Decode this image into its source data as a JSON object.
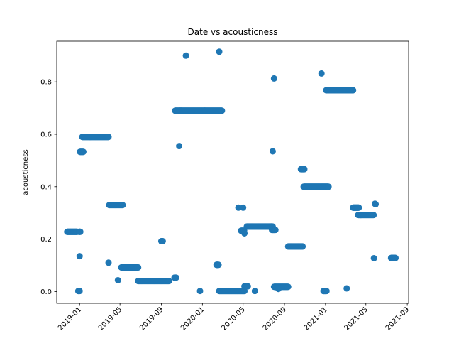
{
  "chart_data": {
    "type": "scatter",
    "title": "Date vs acousticness",
    "xlabel": "",
    "ylabel": "acousticness",
    "xlim": [
      "2018-10-25",
      "2021-09-05"
    ],
    "ylim": [
      -0.045,
      0.955
    ],
    "grid": false,
    "legend": "none",
    "marker_color": "#1f77b4",
    "x_ticks": [
      "2019-01",
      "2019-05",
      "2019-09",
      "2020-01",
      "2020-05",
      "2020-09",
      "2021-01",
      "2021-05",
      "2021-09"
    ],
    "y_ticks": [
      "0.0",
      "0.2",
      "0.4",
      "0.6",
      "0.8"
    ],
    "clusters": [
      {
        "x_start": "2018-11-25",
        "x_end": "2018-12-25",
        "y": 0.228
      },
      {
        "x_start": "2018-12-30",
        "x_end": "2019-01-03",
        "y": 0.228
      },
      {
        "x_start": "2018-12-28",
        "x_end": "2019-01-01",
        "y": 0.002
      },
      {
        "x_start": "2019-01-01",
        "x_end": "2019-01-01",
        "y": 0.135
      },
      {
        "x_start": "2019-01-02",
        "x_end": "2019-01-12",
        "y": 0.533
      },
      {
        "x_start": "2019-01-09",
        "x_end": "2019-03-28",
        "y": 0.59
      },
      {
        "x_start": "2019-03-28",
        "x_end": "2019-03-28",
        "y": 0.11
      },
      {
        "x_start": "2019-03-30",
        "x_end": "2019-05-09",
        "y": 0.33
      },
      {
        "x_start": "2019-04-25",
        "x_end": "2019-04-25",
        "y": 0.043
      },
      {
        "x_start": "2019-05-05",
        "x_end": "2019-06-24",
        "y": 0.092
      },
      {
        "x_start": "2019-06-24",
        "x_end": "2019-09-24",
        "y": 0.04
      },
      {
        "x_start": "2019-09-01",
        "x_end": "2019-09-05",
        "y": 0.192
      },
      {
        "x_start": "2019-10-10",
        "x_end": "2019-10-15",
        "y": 0.053
      },
      {
        "x_start": "2019-10-12",
        "x_end": "2020-01-08",
        "y": 0.69
      },
      {
        "x_start": "2020-01-08",
        "x_end": "2020-02-28",
        "y": 0.69
      },
      {
        "x_start": "2020-02-12",
        "x_end": "2020-02-18",
        "y": 0.102
      },
      {
        "x_start": "2020-02-20",
        "x_end": "2020-04-30",
        "y": 0.002
      },
      {
        "x_start": "2020-05-01",
        "x_end": "2020-05-05",
        "y": 0.002
      },
      {
        "x_start": "2020-05-05",
        "x_end": "2020-05-15",
        "y": 0.02
      },
      {
        "x_start": "2020-04-25",
        "x_end": "2020-05-04",
        "y": 0.232
      },
      {
        "x_start": "2020-05-12",
        "x_end": "2020-07-28",
        "y": 0.248
      },
      {
        "x_start": "2020-07-26",
        "x_end": "2020-08-05",
        "y": 0.235
      },
      {
        "x_start": "2020-08-01",
        "x_end": "2020-09-12",
        "y": 0.018
      },
      {
        "x_start": "2020-09-12",
        "x_end": "2020-10-25",
        "y": 0.172
      },
      {
        "x_start": "2020-10-20",
        "x_end": "2020-10-30",
        "y": 0.467
      },
      {
        "x_start": "2020-10-28",
        "x_end": "2021-01-10",
        "y": 0.4
      },
      {
        "x_start": "2020-12-26",
        "x_end": "2021-01-04",
        "y": 0.002
      },
      {
        "x_start": "2021-01-03",
        "x_end": "2021-03-24",
        "y": 0.768
      },
      {
        "x_start": "2021-03-24",
        "x_end": "2021-04-10",
        "y": 0.32
      },
      {
        "x_start": "2021-04-08",
        "x_end": "2021-05-24",
        "y": 0.292
      },
      {
        "x_start": "2021-07-15",
        "x_end": "2021-07-28",
        "y": 0.128
      }
    ],
    "points": [
      {
        "x": "2019-12-25",
        "y": 0.002
      },
      {
        "x": "2019-10-24",
        "y": 0.555
      },
      {
        "x": "2019-11-13",
        "y": 0.9
      },
      {
        "x": "2020-02-20",
        "y": 0.915
      },
      {
        "x": "2020-04-17",
        "y": 0.32
      },
      {
        "x": "2020-05-01",
        "y": 0.32
      },
      {
        "x": "2020-05-05",
        "y": 0.222
      },
      {
        "x": "2020-06-05",
        "y": 0.002
      },
      {
        "x": "2020-07-28",
        "y": 0.535
      },
      {
        "x": "2020-08-01",
        "y": 0.813
      },
      {
        "x": "2020-08-14",
        "y": 0.01
      },
      {
        "x": "2020-12-20",
        "y": 0.832
      },
      {
        "x": "2021-03-05",
        "y": 0.012
      },
      {
        "x": "2021-05-25",
        "y": 0.127
      },
      {
        "x": "2021-05-28",
        "y": 0.335
      },
      {
        "x": "2021-05-30",
        "y": 0.333
      }
    ]
  }
}
